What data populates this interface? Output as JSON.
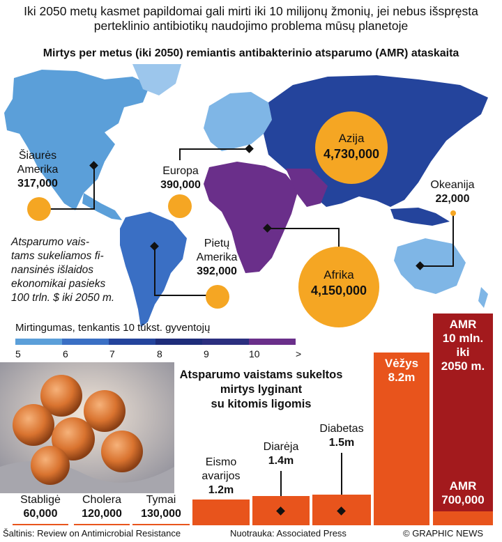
{
  "header": {
    "title": "Iki 2050 metų kasmet papildomai gali mirti iki 10 milijonų žmonių, jei nebus išspręsta perteklinio antibiotikų naudojimo problema mūsų planetoje",
    "subtitle": "Mirtys per metus (iki 2050) remiantis antibakterinio atsparumo (AMR) ataskaita"
  },
  "regions": {
    "north_america": {
      "name1": "Šiaurės",
      "name2": "Amerika",
      "value": "317,000"
    },
    "europe": {
      "name": "Europa",
      "value": "390,000"
    },
    "asia": {
      "name": "Azija",
      "value": "4,730,000"
    },
    "oceania": {
      "name": "Okeanija",
      "value": "22,000"
    },
    "south_america": {
      "name1": "Pietų",
      "name2": "Amerika",
      "value": "392,000"
    },
    "africa": {
      "name": "Afrika",
      "value": "4,150,000"
    }
  },
  "note": {
    "line1": "Atsparumo vais-",
    "line2": "tams sukeliamos fi-",
    "line3": "nansinės išlaidos",
    "line4": "ekonomikai pasieks",
    "line5": "100 trln. $ iki 2050 m."
  },
  "scale": {
    "title": "Mirtingumas, tenkantis 10 tūkst. gyventojų",
    "labels": [
      "5",
      "6",
      "7",
      "8",
      "9",
      "10",
      ">"
    ],
    "colors": [
      "#5b9fd9",
      "#3a6fc4",
      "#24449c",
      "#1e2d7a",
      "#2c2f7f",
      "#6a2f8a"
    ]
  },
  "comparison": {
    "title1": "Atsparumo vaistams sukeltos",
    "title2": "mirtys lyginant",
    "title3": "su kitomis ligomis"
  },
  "diseases": {
    "tetanus": {
      "name": "Stabligė",
      "value": "60,000"
    },
    "cholera": {
      "name": "Cholera",
      "value": "120,000"
    },
    "measles": {
      "name": "Tymai",
      "value": "130,000"
    },
    "road": {
      "name1": "Eismo",
      "name2": "avarijos",
      "value": "1.2m"
    },
    "diarrhea": {
      "name": "Diarėja",
      "value": "1.4m"
    },
    "diabetes": {
      "name": "Diabetas",
      "value": "1.5m"
    },
    "cancer": {
      "name": "Vėžys",
      "value": "8.2m"
    },
    "amr_2050": {
      "line1": "AMR",
      "line2": "10 mln.",
      "line3": "iki",
      "line4": "2050 m."
    },
    "amr_now": {
      "line1": "AMR",
      "line2": "700,000"
    }
  },
  "footer": {
    "source": "Šaltinis: Review on Antimicrobial Resistance",
    "photo": "Nuotrauka: Associated Press",
    "credit": "© GRAPHIC NEWS"
  },
  "colors": {
    "accent_orange": "#e8541c",
    "amr_red": "#a31a1d",
    "circle": "#f5a623"
  }
}
